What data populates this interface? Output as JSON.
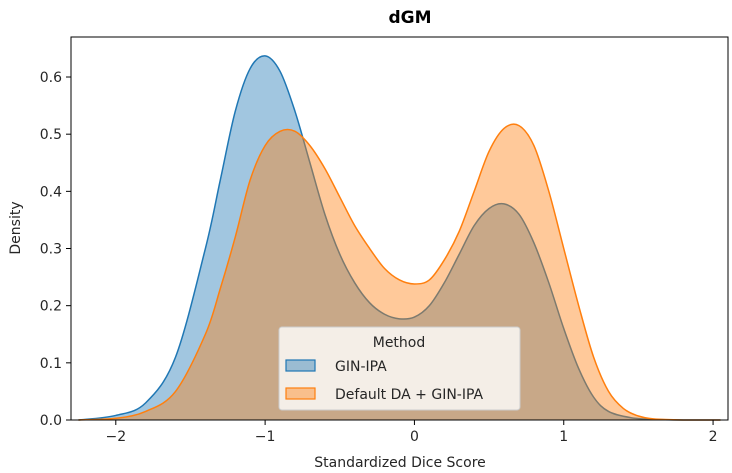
{
  "chart_data": {
    "type": "area",
    "title": "dGM",
    "xlabel": "Standardized Dice Score",
    "ylabel": "Density",
    "xlim": [
      -2.3,
      2.1
    ],
    "ylim": [
      0,
      0.67
    ],
    "xticks": [
      -2,
      -1,
      0,
      1,
      2
    ],
    "yticks": [
      0.0,
      0.1,
      0.2,
      0.3,
      0.4,
      0.5,
      0.6
    ],
    "grid": false,
    "legend": {
      "title": "Method",
      "placement": "bottom-center"
    },
    "series": [
      {
        "name": "GIN-IPA",
        "color": "#1f77b4",
        "x": [
          -2.25,
          -2.0,
          -1.8,
          -1.6,
          -1.4,
          -1.3,
          -1.2,
          -1.1,
          -1.0,
          -0.9,
          -0.8,
          -0.7,
          -0.6,
          -0.5,
          -0.4,
          -0.3,
          -0.2,
          -0.1,
          0.0,
          0.1,
          0.2,
          0.3,
          0.4,
          0.5,
          0.6,
          0.7,
          0.8,
          0.9,
          1.0,
          1.1,
          1.2,
          1.3,
          1.45,
          1.6,
          1.8,
          2.05
        ],
        "y": [
          0.0,
          0.008,
          0.03,
          0.11,
          0.3,
          0.42,
          0.54,
          0.615,
          0.637,
          0.61,
          0.54,
          0.45,
          0.36,
          0.29,
          0.24,
          0.205,
          0.185,
          0.177,
          0.18,
          0.2,
          0.24,
          0.29,
          0.34,
          0.37,
          0.378,
          0.36,
          0.31,
          0.24,
          0.16,
          0.09,
          0.04,
          0.015,
          0.004,
          0.001,
          0.0,
          0.0
        ]
      },
      {
        "name": "Default DA + GIN-IPA",
        "color": "#ff7f0e",
        "x": [
          -2.25,
          -2.0,
          -1.8,
          -1.6,
          -1.4,
          -1.3,
          -1.2,
          -1.1,
          -1.0,
          -0.9,
          -0.8,
          -0.7,
          -0.6,
          -0.5,
          -0.4,
          -0.3,
          -0.2,
          -0.1,
          0.0,
          0.1,
          0.2,
          0.3,
          0.4,
          0.5,
          0.6,
          0.7,
          0.8,
          0.9,
          1.0,
          1.1,
          1.2,
          1.3,
          1.4,
          1.5,
          1.6,
          1.8,
          2.05
        ],
        "y": [
          0.0,
          0.003,
          0.015,
          0.05,
          0.15,
          0.23,
          0.32,
          0.42,
          0.48,
          0.505,
          0.505,
          0.48,
          0.44,
          0.39,
          0.34,
          0.3,
          0.265,
          0.245,
          0.238,
          0.245,
          0.28,
          0.33,
          0.4,
          0.47,
          0.51,
          0.515,
          0.48,
          0.4,
          0.3,
          0.2,
          0.11,
          0.05,
          0.02,
          0.007,
          0.002,
          0.0,
          0.0
        ]
      }
    ]
  }
}
